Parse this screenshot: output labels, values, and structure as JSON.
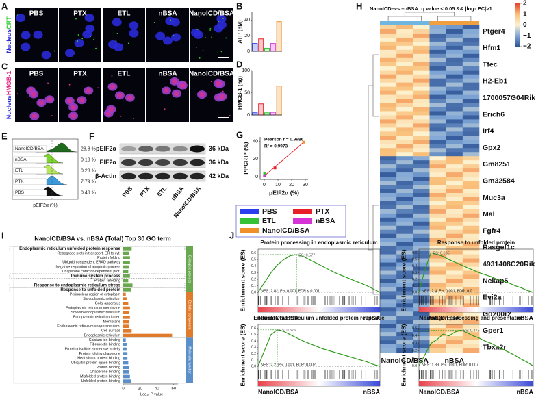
{
  "panel_labels": [
    "A",
    "B",
    "C",
    "D",
    "E",
    "F",
    "G",
    "H",
    "I",
    "J"
  ],
  "microscopy": {
    "conditions": [
      "PBS",
      "PTX",
      "ETL",
      "nBSA",
      "NanoICD/BSA"
    ],
    "stain_a": [
      "Nucleus",
      "CRT"
    ],
    "stain_c": [
      "Nucleus",
      "HMGB-1"
    ]
  },
  "flow": {
    "samples": [
      "NanoICD/BSA",
      "nBSA",
      "ETL",
      "PTX",
      "PBS"
    ],
    "percentages": [
      "28.8 %",
      "0.18 %",
      "0.28 %",
      "7.79 %",
      "0.48 %"
    ],
    "xlabel": "pEIF2α (%)"
  },
  "blot": {
    "proteins": [
      "pEIF2α",
      "EIF2α",
      "β-Actin"
    ],
    "sizes": [
      "36 kDa",
      "36 kDa",
      "42 kDa"
    ],
    "lanes": [
      "PBS",
      "PTX",
      "ETL",
      "nBSA",
      "NanoICD/BSA"
    ]
  },
  "legend": [
    {
      "name": "PBS",
      "color": "#2b3ff0"
    },
    {
      "name": "PTX",
      "color": "#e8202a"
    },
    {
      "name": "ETL",
      "color": "#36c236"
    },
    {
      "name": "nBSA",
      "color": "#d633d6"
    },
    {
      "name": "NanoICD/BSA",
      "color": "#f0902a"
    }
  ],
  "heatmap": {
    "title": "NanoICD–vs.–nBSA: q value < 0.05 && |log₂ FC|>1",
    "genes": [
      "Ptger4",
      "Hfm1",
      "Tfec",
      "H2-Eb1",
      "1700057G04Rik",
      "Erich6",
      "Irf4",
      "Gpx2",
      "Gm8251",
      "Gm32584",
      "Muc3a",
      "Mal",
      "Fgfr4",
      "Rasgef1c",
      "4931408C20Rik",
      "Nckap5",
      "Evi2a",
      "Gd200r2",
      "Gper1",
      "Tbxa2r"
    ],
    "groups": [
      "NanoICD/BSA",
      "nBSA"
    ],
    "colorbar_ticks": [
      2,
      1,
      0,
      {
        "value": -1,
        "label": "−1"
      },
      {
        "value": -2,
        "label": "−2"
      }
    ]
  },
  "chart_data": [
    {
      "type": "bar",
      "ylabel": "ATP (nM)",
      "values": [
        10,
        16,
        4,
        10,
        38
      ],
      "colors": [
        "#2b3ff0",
        "#e8202a",
        "#36c236",
        "#d633d6",
        "#f0902a"
      ],
      "ylim": [
        0,
        50
      ],
      "yticks": [
        0,
        20,
        40
      ]
    },
    {
      "type": "bar",
      "ylabel": "HMGB-1 (ng)",
      "values": [
        5,
        25,
        5,
        6,
        65
      ],
      "colors": [
        "#2b3ff0",
        "#e8202a",
        "#36c236",
        "#d633d6",
        "#f0902a"
      ],
      "ylim": [
        0,
        100
      ],
      "yticks": [
        0,
        50,
        100
      ]
    },
    {
      "type": "scatter",
      "annotations": [
        "Pearson r = 0.9986",
        "R² = 0.9973"
      ],
      "x": [
        0.48,
        7.79,
        0.28,
        0.18,
        28.8
      ],
      "values": [
        2,
        10,
        4,
        1,
        39
      ],
      "colors": [
        "#2b3ff0",
        "#e8202a",
        "#36c236",
        "#d633d6",
        "#f0902a"
      ],
      "xlim": [
        -3,
        32
      ],
      "ylim": [
        -3,
        45
      ],
      "xticks": [
        0,
        10,
        20,
        30
      ],
      "yticks": [
        0,
        20,
        40
      ],
      "xlabel": "pEIF2α (%)",
      "ylabel": "PI⁺CRT⁺ (%)"
    },
    {
      "type": "barh",
      "title": "NanoICD/BSA vs. nBSA (Total) Top 30 GO term",
      "xlabel": "−Log₁₀ P value",
      "xlim": [
        0,
        65
      ],
      "xticks": [
        0,
        20,
        40,
        60
      ],
      "series": [
        {
          "name": "Biological process",
          "color": "#6aa84f",
          "categories": [
            "Endoplasmic reticulum unfolded protein response",
            "Retrograde protein transport, ER to cyt.",
            "Protein folding",
            "Ubiquitin-dependent ERAD pathway",
            "Negative regulation of apoptotic process",
            "Chaperone cofactor-dependent prot.",
            "Immune system process",
            "Protein refolding",
            "Response to endoplasmic reticulum stress",
            "Response to unfolded protein"
          ],
          "values": [
            10,
            7,
            8,
            8,
            7,
            6,
            8,
            6,
            11,
            9
          ]
        },
        {
          "name": "Cellular component",
          "color": "#e07b2c",
          "categories": [
            "Perinuclear region of cytoplasm",
            "Sarcoplasmic reticulum",
            "Golgi apparatus",
            "Endoplasmic reticulum membrane",
            "Smooth endoplasmic reticulum",
            "Endoplasmic reticulum lumen",
            "Membrane",
            "Endoplasmic reticulum chaperone com.",
            "Cell surface",
            "Endoplasmic reticulum"
          ],
          "values": [
            3,
            4,
            6,
            8,
            7,
            8,
            7,
            7,
            10,
            58
          ]
        },
        {
          "name": "Molecular function",
          "color": "#5b8fc9",
          "categories": [
            "Calcium ion binding",
            "Fibronectin binding",
            "Protein disulfide isomerase activity",
            "Protein folding chaperone",
            "Heat shock protein binding",
            "Ubiquitin protein ligase binding",
            "Protein binding",
            "Chaperone binding",
            "Misfolded protein binding",
            "Unfolded protein binding"
          ],
          "values": [
            3,
            4,
            4,
            5,
            5,
            6,
            7,
            7,
            8,
            9
          ]
        }
      ]
    },
    {
      "type": "line",
      "title": "Protein processing in endoplasmic reticulum",
      "es_label": "ES: 0.577",
      "stats": "NES: 2.82, P < 0.001, FDR < 0.001",
      "ylabel": "Enrichment score (ES)",
      "xlabels": [
        "NanoICD/BSA",
        "nBSA"
      ],
      "color": "#2e9a1a",
      "ylim": [
        -0.03,
        0.66
      ],
      "yticks": [
        {
          "value": 0,
          "label": "0.0"
        },
        0.1,
        0.2,
        0.3,
        0.4,
        0.5,
        0.6
      ],
      "values": [
        0,
        0.15,
        0.3,
        0.42,
        0.5,
        0.56,
        0.577,
        0.55,
        0.5,
        0.45,
        0.4,
        0.35,
        0.3,
        0.26,
        0.22,
        0.18,
        0.14,
        0.1,
        0.05,
        0
      ]
    },
    {
      "type": "line",
      "title": "Response to unfolded protein",
      "es_label": "ES: 0.605",
      "stats": "NES: 2.4, P < 0.001, FDR: 0.0",
      "ylabel": "Enrichment score (ES)",
      "xlabels": [
        "NanoICD/BSA",
        "nBSA"
      ],
      "color": "#2e9a1a",
      "ylim": [
        -0.03,
        0.66
      ],
      "yticks": [
        {
          "value": 0,
          "label": "0.0"
        },
        0.1,
        0.2,
        0.3,
        0.4,
        0.5,
        0.6
      ],
      "values": [
        0,
        0.35,
        0.605,
        0.58,
        0.55,
        0.5,
        0.46,
        0.42,
        0.38,
        0.34,
        0.3,
        0.27,
        0.24,
        0.2,
        0.17,
        0.14,
        0.1,
        0.07,
        0.03,
        0
      ]
    },
    {
      "type": "line",
      "title": "Endoplasmic reticulum unfolded protein response",
      "es_label": "ES: 0.576",
      "stats": "NES: 2.2, P < 0.001, FDR: 0.002",
      "ylabel": "Enrichment score (ES)",
      "xlabels": [
        "NanoICD/BSA",
        "nBSA"
      ],
      "color": "#2e9a1a",
      "ylim": [
        -0.03,
        0.66
      ],
      "yticks": [
        {
          "value": 0,
          "label": "0.0"
        },
        0.1,
        0.2,
        0.3,
        0.4,
        0.5,
        0.6
      ],
      "values": [
        0,
        0.25,
        0.5,
        0.576,
        0.55,
        0.5,
        0.45,
        0.4,
        0.36,
        0.32,
        0.28,
        0.25,
        0.22,
        0.19,
        0.16,
        0.13,
        0.1,
        0.07,
        0.03,
        0
      ]
    },
    {
      "type": "line",
      "title": "Antigen processing and presentation",
      "es_label": "ES: 0.475",
      "stats": "NES: 1.89, P < 0.001, FDR: 0.007",
      "ylabel": "Enrichment score (ES)",
      "xlabels": [
        "NanoICD/BSA",
        "nBSA"
      ],
      "color": "#2e9a1a",
      "ylim": [
        -0.03,
        0.55
      ],
      "yticks": [
        {
          "value": 0,
          "label": "0.0"
        },
        0.1,
        0.2,
        0.3,
        0.4,
        0.5
      ],
      "values": [
        0,
        0.15,
        0.3,
        0.35,
        0.42,
        0.4,
        0.45,
        0.475,
        0.44,
        0.4,
        0.37,
        0.33,
        0.3,
        0.26,
        0.22,
        0.18,
        0.14,
        0.09,
        0.05,
        0
      ]
    }
  ]
}
